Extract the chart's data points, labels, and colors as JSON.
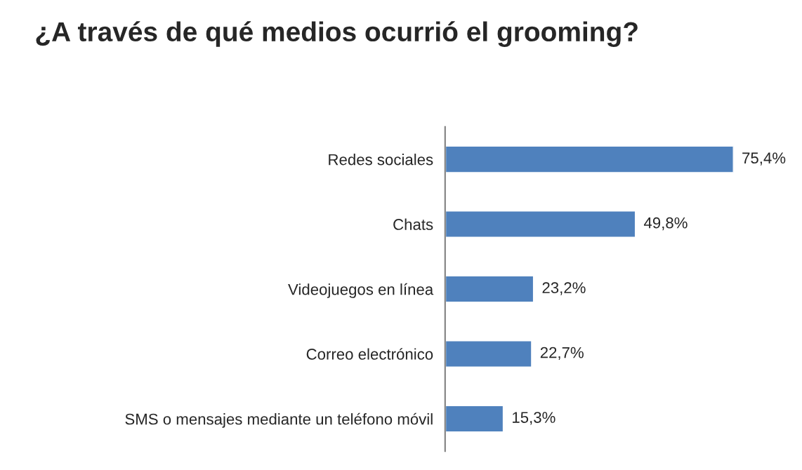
{
  "chart_data": {
    "type": "bar",
    "orientation": "horizontal",
    "title": "¿A través de qué medios ocurrió el grooming?",
    "categories": [
      "Redes sociales",
      "Chats",
      "Videojuegos en línea",
      "Correo electrónico",
      "SMS o mensajes mediante un teléfono móvil"
    ],
    "values": [
      75.4,
      49.8,
      23.2,
      22.7,
      15.3
    ],
    "value_labels": [
      "75,4%",
      "49,8%",
      "23,2%",
      "22,7%",
      "15,3%"
    ],
    "color": "#4f81bd",
    "grid": false,
    "legend": false
  }
}
